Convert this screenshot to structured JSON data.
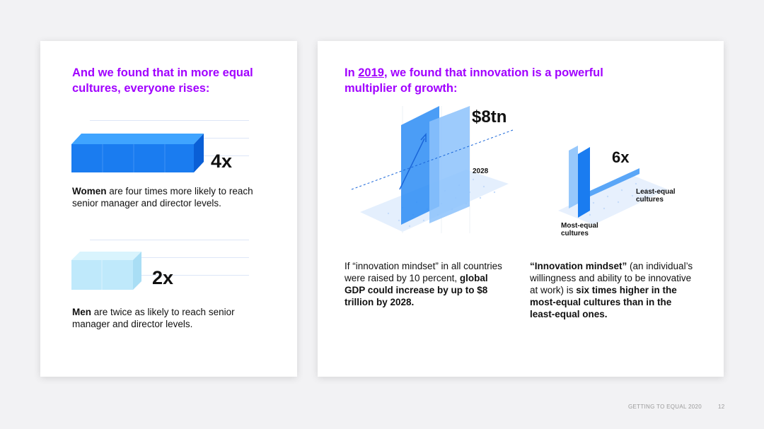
{
  "left_panel": {
    "heading": "And we found that in more equal cultures, everyone rises:",
    "women": {
      "multiplier": "4x",
      "bold_text": "Women",
      "text": " are four times more likely to reach senior manager and director levels."
    },
    "men": {
      "multiplier": "2x",
      "bold_text": "Men",
      "text": " are twice as likely to reach senior manager and director levels."
    }
  },
  "right_panel": {
    "heading_prefix": "In ",
    "heading_year": "2019",
    "heading_suffix": ", we found that innovation is a powerful multiplier of growth:",
    "gdp_graphic": {
      "value_label": "$8tn",
      "year_label": "2028"
    },
    "culture_graphic": {
      "multiplier": "6x",
      "least_equal_label": "Least-equal cultures",
      "most_equal_label": "Most-equal cultures"
    },
    "gdp_text": {
      "plain": "If “innovation mindset” in all countries were raised by 10 percent, ",
      "bold": "global GDP could increase by up to $8 trillion by 2028."
    },
    "mindset_text": {
      "bold_start": "“Innovation mindset”",
      "plain": " (an individual’s willingness and ability to be innovative at work) is ",
      "bold_end": "six times higher in the most-equal cultures than in the least-equal ones."
    }
  },
  "footer": {
    "document_title": "GETTING TO EQUAL 2020",
    "page_number": "12"
  },
  "colors": {
    "heading": "#a100ff",
    "bar_dark": "#1a7cf0",
    "bar_light": "#bfe9fb"
  }
}
